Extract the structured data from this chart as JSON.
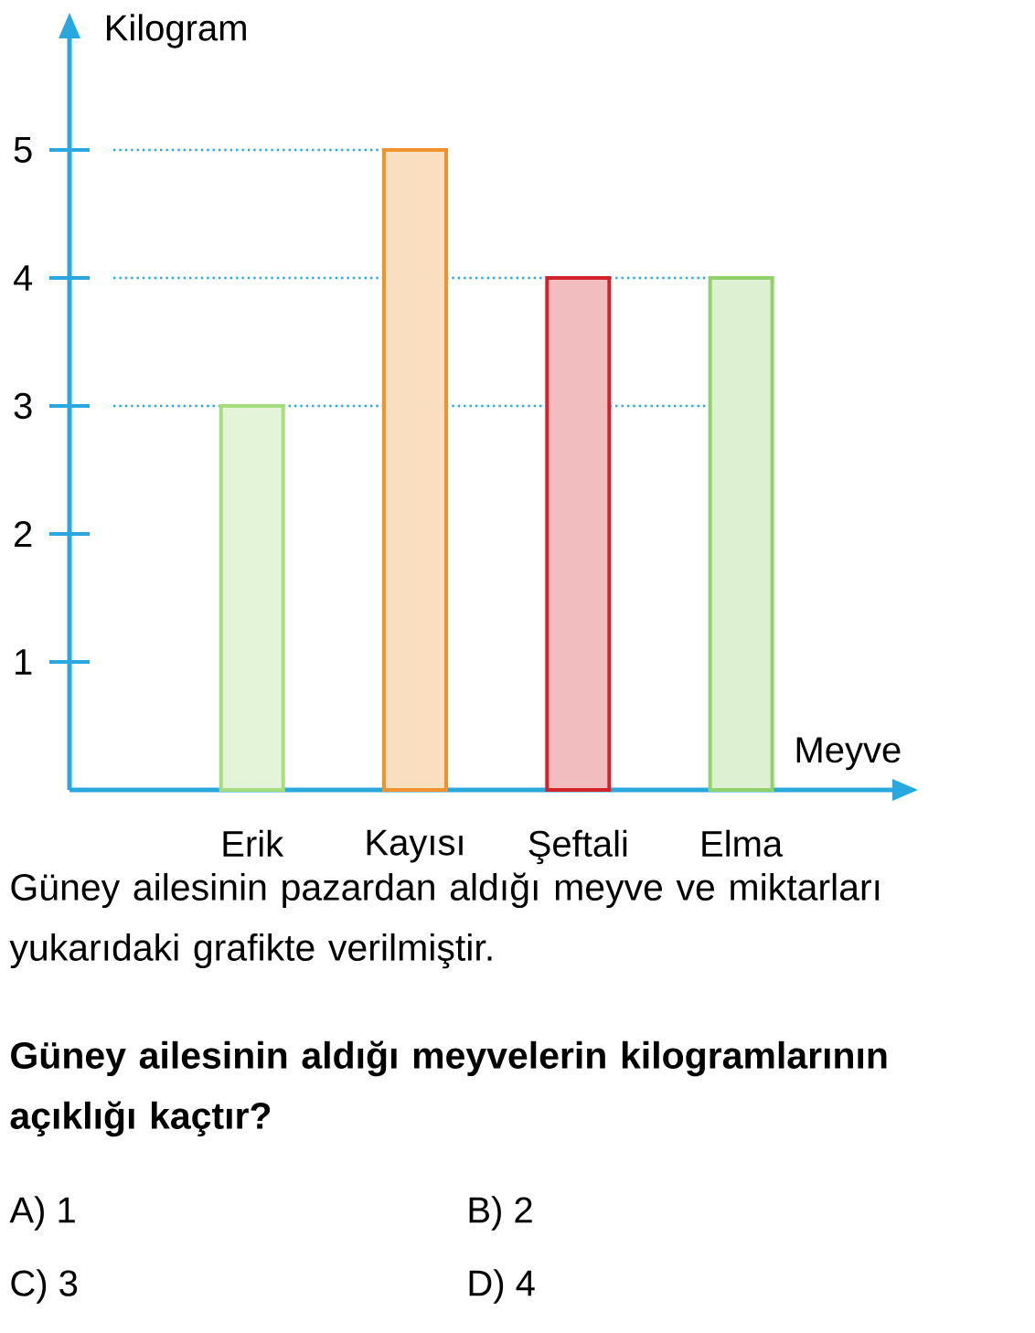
{
  "chart_data": {
    "type": "bar",
    "xlabel": "Meyve",
    "ylabel": "Kilogram",
    "categories": [
      "Erik",
      "Kayısı",
      "Şeftali",
      "Elma"
    ],
    "values": [
      3,
      5,
      4,
      4
    ],
    "colors": [
      "#a5dc7e",
      "#f0922e",
      "#d2232a",
      "#8fd16a"
    ],
    "ylim": [
      0,
      5.9
    ],
    "yticks": [
      1,
      2,
      3,
      4,
      5
    ],
    "ref_lines": [
      {
        "axis": "y",
        "value": 3,
        "color": "#29a8e0",
        "line_style": "dotted"
      },
      {
        "axis": "y",
        "value": 4,
        "color": "#29a8e0",
        "line_style": "dotted"
      },
      {
        "axis": "y",
        "value": 5,
        "color": "#29a8e0",
        "line_style": "dotted"
      }
    ],
    "annotations": [
      "Güney ailesinin pazardan aldığı meyve ve miktarları yukarıdaki grafikte verilmiştir.",
      "Güney ailesinin aldığı meyvelerin kilogramlarının açıklığı kaçtır?",
      "A)  1",
      "B)  2",
      "C)  3",
      "D)  4"
    ]
  }
}
